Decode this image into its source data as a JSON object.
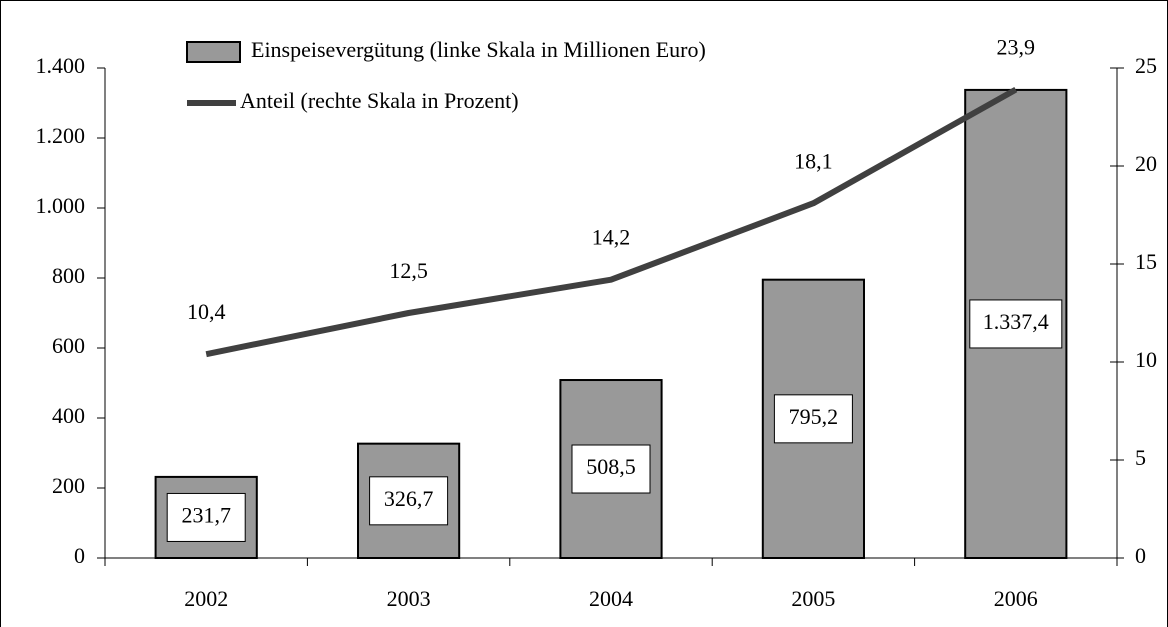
{
  "chart_data": {
    "type": "combo",
    "categories": [
      "2002",
      "2003",
      "2004",
      "2005",
      "2006"
    ],
    "series": [
      {
        "name": "Einspeisevergütung (linke Skala in Millionen Euro)",
        "type": "bar",
        "color": "#999999",
        "values": [
          231.7,
          326.7,
          508.5,
          795.2,
          1337.4
        ],
        "value_labels": [
          "231,7",
          "326,7",
          "508,5",
          "795,2",
          "1.337,4"
        ]
      },
      {
        "name": "Anteil (rechte Skala in Prozent)",
        "type": "line",
        "axis": "y2",
        "color": "#404040",
        "values": [
          10.4,
          12.5,
          14.2,
          18.1,
          23.9
        ],
        "value_labels": [
          "10,4",
          "12,5",
          "14,2",
          "18,1",
          "23,9"
        ]
      }
    ],
    "ylim": [
      0,
      1400
    ],
    "yticks": [
      0,
      200,
      400,
      600,
      800,
      {
        "value": 1000,
        "label": "1.000"
      },
      {
        "value": 1200,
        "label": "1.200"
      },
      {
        "value": 1400,
        "label": "1.400"
      }
    ],
    "y2lim": [
      0,
      25
    ],
    "y2ticks": [
      0,
      5,
      10,
      15,
      20,
      25
    ],
    "grid": false
  }
}
